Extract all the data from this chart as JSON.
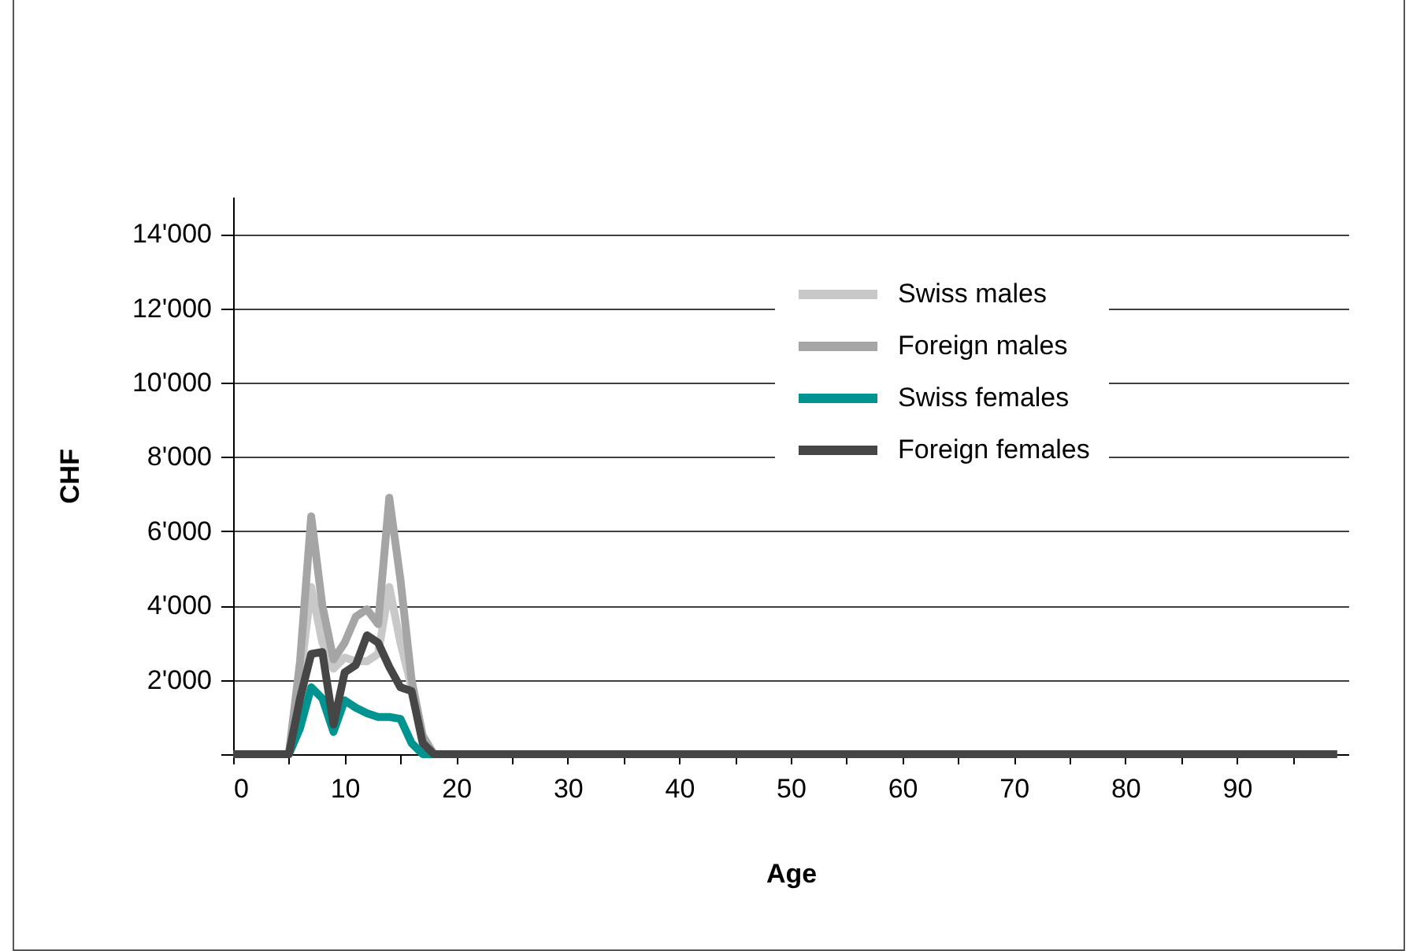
{
  "chart_data": {
    "type": "line",
    "xlabel": "Age",
    "ylabel": "CHF",
    "x": [
      0,
      1,
      2,
      3,
      4,
      5,
      6,
      7,
      8,
      9,
      10,
      11,
      12,
      13,
      14,
      15,
      16,
      17,
      18,
      19,
      20,
      21,
      22,
      23,
      24,
      25,
      26,
      27,
      28,
      29,
      30,
      31,
      32,
      33,
      34,
      35,
      36,
      37,
      38,
      39,
      40,
      41,
      42,
      43,
      44,
      45,
      46,
      47,
      48,
      49,
      50,
      51,
      52,
      53,
      54,
      55,
      56,
      57,
      58,
      59,
      60,
      61,
      62,
      63,
      64,
      65,
      66,
      67,
      68,
      69,
      70,
      71,
      72,
      73,
      74,
      75,
      76,
      77,
      78,
      79,
      80,
      81,
      82,
      83,
      84,
      85,
      86,
      87,
      88,
      89,
      90,
      91,
      92,
      93,
      94,
      95,
      96,
      97,
      98,
      99
    ],
    "series": [
      {
        "name": "Swiss males",
        "color": "#c8c8c8",
        "values": [
          null,
          null,
          null,
          null,
          null,
          0,
          2000,
          4500,
          3000,
          2300,
          2600,
          2500,
          2500,
          2700,
          4500,
          3000,
          1800,
          300,
          0,
          null,
          null,
          null,
          null,
          null,
          null,
          null,
          null,
          null,
          null,
          null,
          null,
          null,
          null,
          null,
          null,
          null,
          null,
          null,
          null,
          null,
          null,
          null,
          null,
          null,
          null,
          null,
          null,
          null,
          null,
          null,
          null,
          null,
          null,
          null,
          null,
          null,
          null,
          null,
          null,
          null,
          null,
          null,
          null,
          null,
          null,
          null,
          null,
          null,
          null,
          null,
          null,
          null,
          null,
          null,
          null,
          null,
          null,
          null,
          null,
          null,
          null,
          null,
          null,
          null,
          null,
          null,
          null,
          null,
          null,
          null,
          null,
          null,
          null,
          null,
          null,
          null,
          null,
          null,
          null,
          null
        ]
      },
      {
        "name": "Foreign males",
        "color": "#a5a5a5",
        "values": [
          null,
          null,
          null,
          null,
          null,
          0,
          2500,
          6400,
          4000,
          2550,
          3000,
          3700,
          3900,
          3500,
          6900,
          4700,
          2000,
          500,
          0,
          null,
          null,
          null,
          null,
          null,
          null,
          null,
          null,
          null,
          null,
          null,
          null,
          null,
          null,
          null,
          null,
          null,
          null,
          null,
          null,
          null,
          null,
          null,
          null,
          null,
          null,
          null,
          null,
          null,
          null,
          null,
          null,
          null,
          null,
          null,
          null,
          null,
          null,
          null,
          null,
          null,
          null,
          null,
          null,
          null,
          null,
          null,
          null,
          null,
          null,
          null,
          null,
          null,
          null,
          null,
          null,
          null,
          null,
          null,
          null,
          null,
          null,
          null,
          null,
          null,
          null,
          null,
          null,
          null,
          null,
          null,
          null,
          null,
          null,
          null,
          null,
          null,
          null,
          null,
          null,
          null
        ]
      },
      {
        "name": "Swiss females",
        "color": "#009490",
        "values": [
          null,
          null,
          null,
          null,
          null,
          0,
          700,
          1800,
          1500,
          600,
          1450,
          1250,
          1100,
          1000,
          1000,
          950,
          300,
          0,
          0,
          null,
          null,
          null,
          null,
          null,
          null,
          null,
          null,
          null,
          null,
          null,
          null,
          null,
          null,
          null,
          null,
          null,
          null,
          null,
          null,
          null,
          null,
          null,
          null,
          null,
          null,
          null,
          null,
          null,
          null,
          null,
          null,
          null,
          null,
          null,
          null,
          null,
          null,
          null,
          null,
          null,
          null,
          null,
          null,
          null,
          null,
          null,
          null,
          null,
          null,
          null,
          null,
          null,
          null,
          null,
          null,
          null,
          null,
          null,
          null,
          null,
          null,
          null,
          null,
          null,
          null,
          null,
          null,
          null,
          null,
          null,
          null,
          null,
          null,
          null,
          null,
          null,
          null,
          null,
          null,
          null
        ]
      },
      {
        "name": "Foreign females",
        "color": "#464646",
        "values": [
          0,
          0,
          0,
          0,
          0,
          0,
          1500,
          2700,
          2750,
          800,
          2200,
          2400,
          3200,
          3000,
          2350,
          1800,
          1700,
          300,
          0,
          0,
          0,
          0,
          0,
          0,
          0,
          0,
          0,
          0,
          0,
          0,
          0,
          0,
          0,
          0,
          0,
          0,
          0,
          0,
          0,
          0,
          0,
          0,
          0,
          0,
          0,
          0,
          0,
          0,
          0,
          0,
          0,
          0,
          0,
          0,
          0,
          0,
          0,
          0,
          0,
          0,
          0,
          0,
          0,
          0,
          0,
          0,
          0,
          0,
          0,
          0,
          0,
          0,
          0,
          0,
          0,
          0,
          0,
          0,
          0,
          0,
          0,
          0,
          0,
          0,
          0,
          0,
          0,
          0,
          0,
          0,
          0,
          0,
          0,
          0,
          0,
          0,
          0,
          0,
          0,
          0
        ]
      }
    ],
    "xlim": [
      0,
      100
    ],
    "xticks": [
      0,
      {
        "value": 5,
        "label": null
      },
      10,
      {
        "value": 15,
        "label": null
      },
      20,
      {
        "value": 25,
        "label": null
      },
      30,
      {
        "value": 35,
        "label": null
      },
      40,
      {
        "value": 45,
        "label": null
      },
      50,
      {
        "value": 55,
        "label": null
      },
      60,
      {
        "value": 65,
        "label": null
      },
      70,
      {
        "value": 75,
        "label": null
      },
      80,
      {
        "value": 85,
        "label": null
      },
      90,
      {
        "value": 95,
        "label": null
      }
    ],
    "ylim": [
      0,
      15000
    ],
    "yticks": [
      {
        "value": 0,
        "label": null
      },
      {
        "value": 2000,
        "label": "2'000"
      },
      {
        "value": 4000,
        "label": "4'000"
      },
      {
        "value": 6000,
        "label": "6'000"
      },
      {
        "value": 8000,
        "label": "8'000"
      },
      {
        "value": 10000,
        "label": "10'000"
      },
      {
        "value": 12000,
        "label": "12'000"
      },
      {
        "value": 14000,
        "label": "14'000"
      }
    ],
    "grid": "y",
    "legend": "top right",
    "marker": "none",
    "line_style": "solid"
  }
}
